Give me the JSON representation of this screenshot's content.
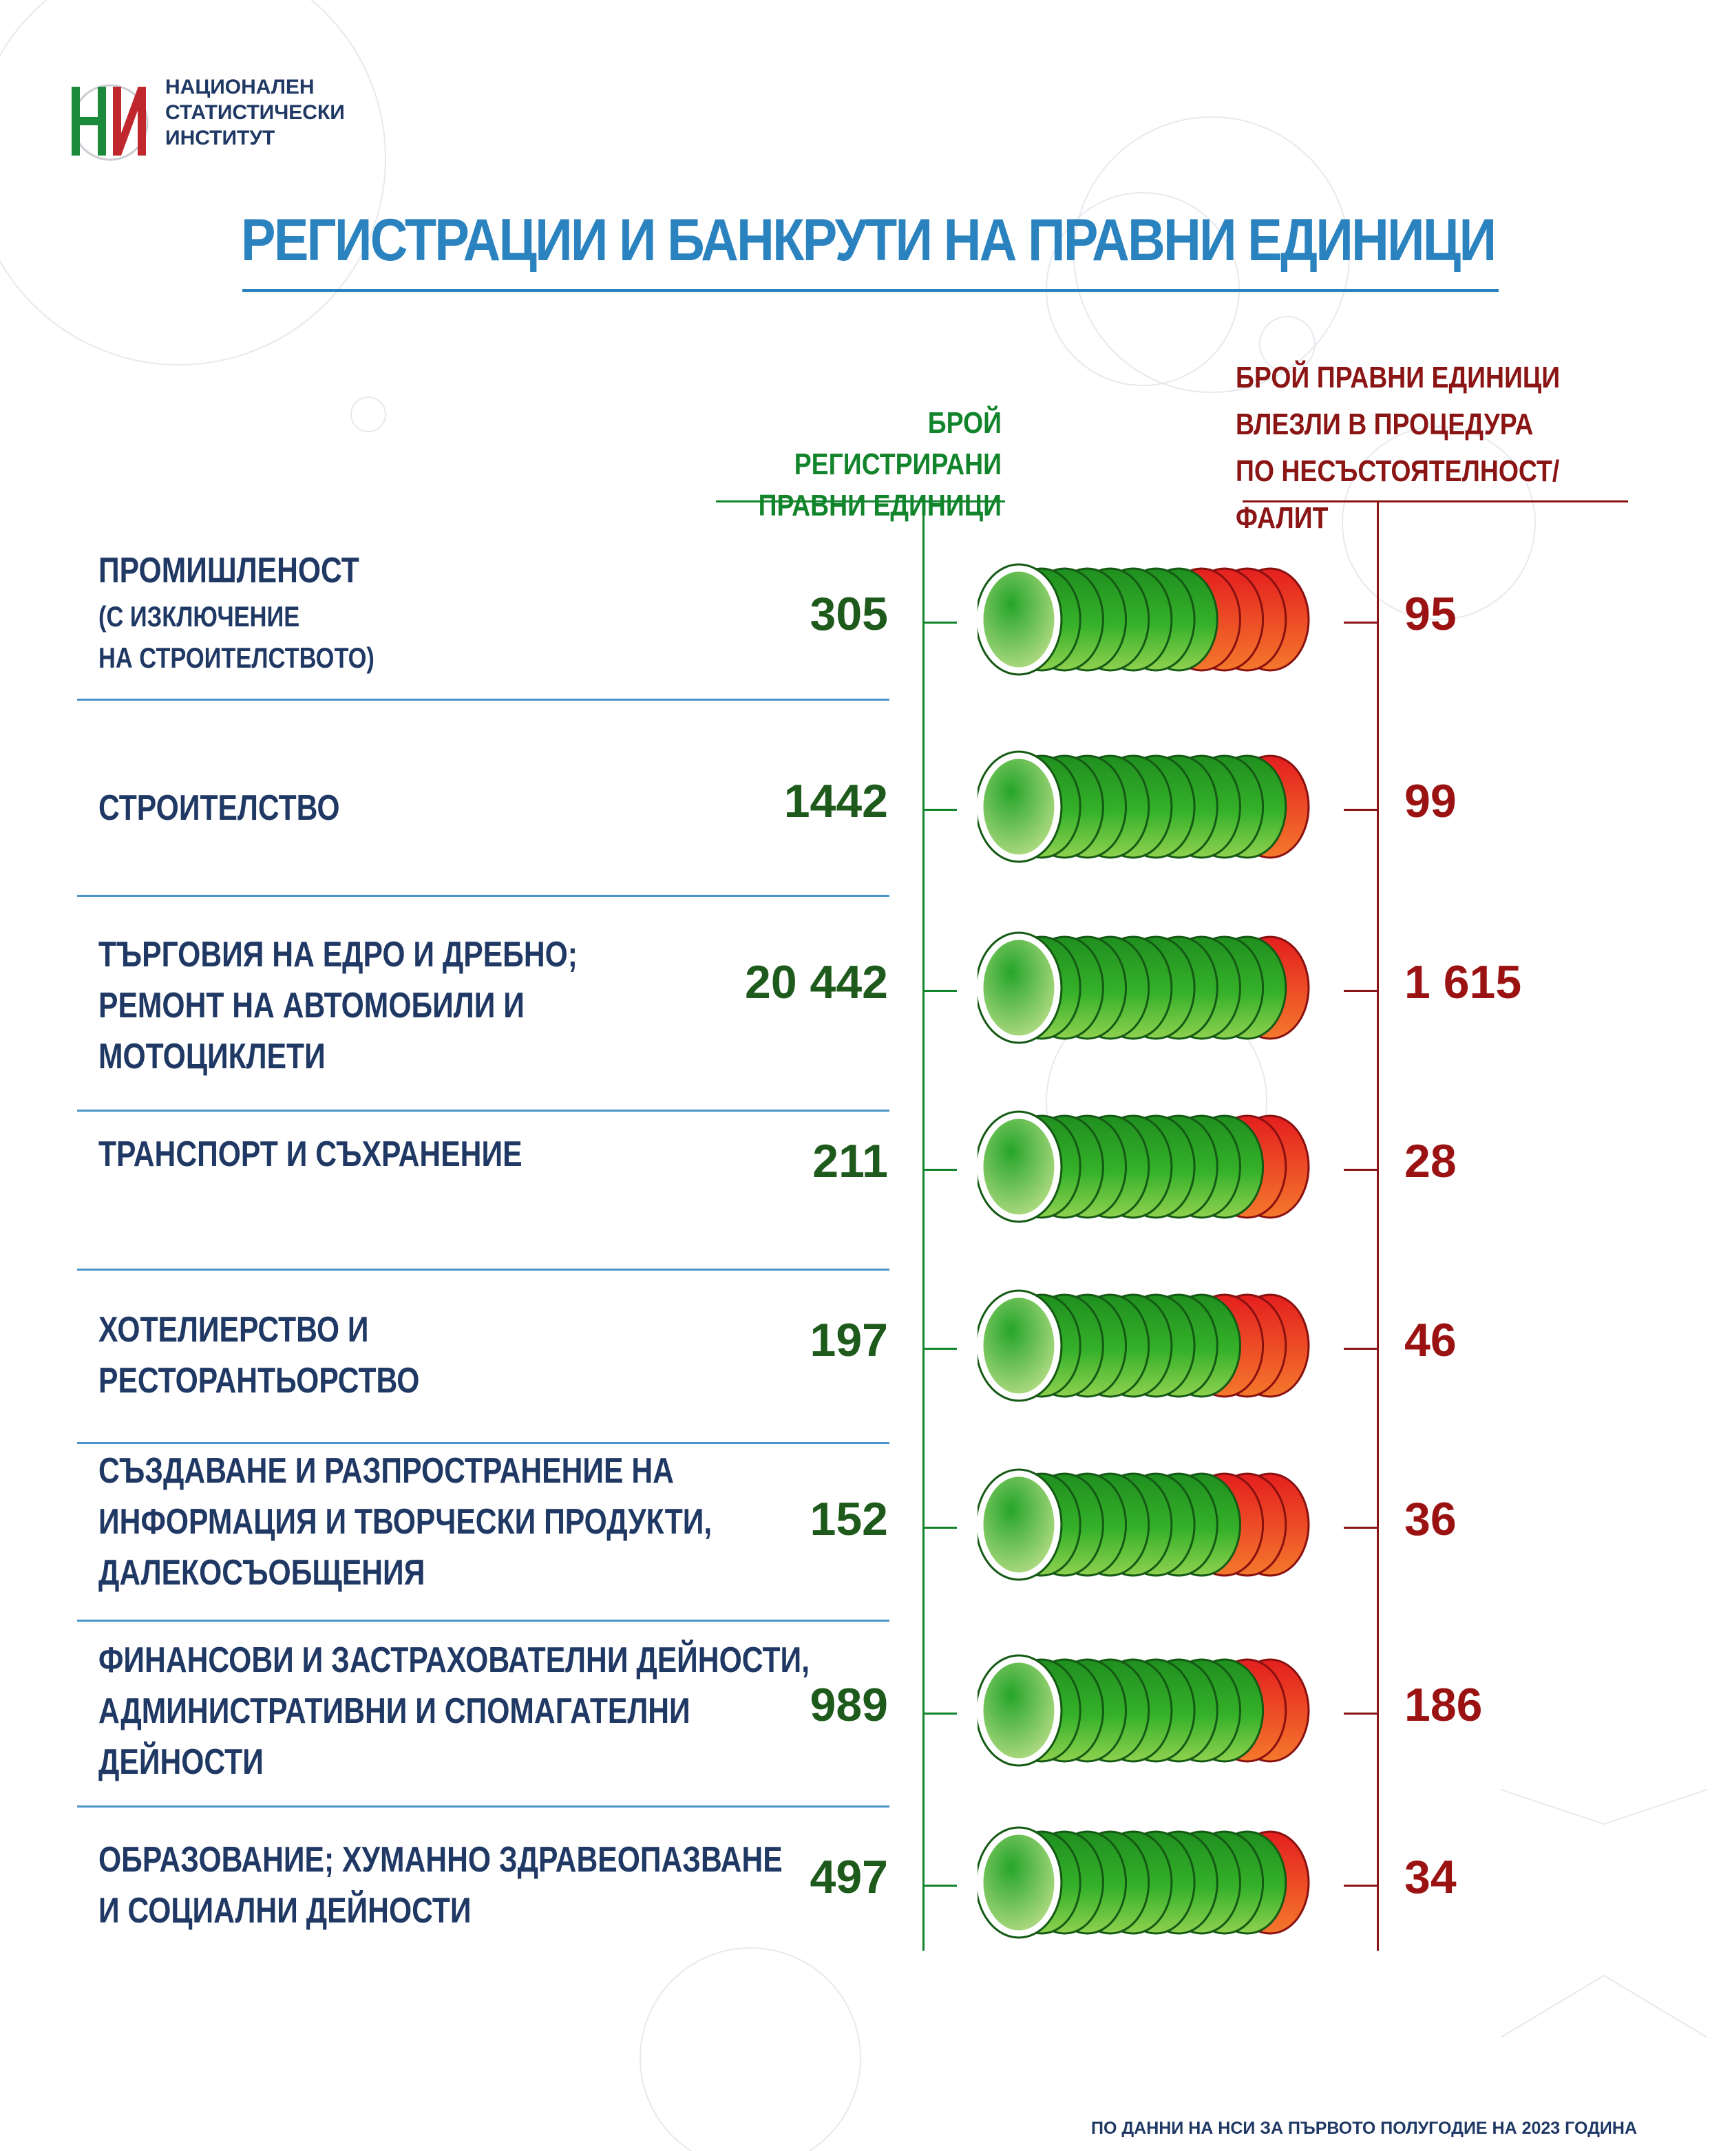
{
  "organization": {
    "line1": "НАЦИОНАЛЕН",
    "line2": "СТАТИСТИЧЕСКИ",
    "line3": "ИНСТИТУТ"
  },
  "title": "РЕГИСТРАЦИИ И БАНКРУТИ НА ПРАВНИ ЕДИНИЦИ",
  "headers": {
    "registered_line1": "БРОЙ РЕГИСТРИРАНИ",
    "registered_line2": "ПРАВНИ ЕДИНИЦИ",
    "bankrupt_line1": "БРОЙ ПРАВНИ ЕДИНИЦИ",
    "bankrupt_line2": "ВЛЕЗЛИ В ПРОЦЕДУРА",
    "bankrupt_line3": "ПО НЕСЪСТОЯТЕЛНОСТ/ФАЛИТ"
  },
  "colors": {
    "title_blue": "#2a82bf",
    "label_navy": "#1f3864",
    "registered_green": "#12852c",
    "bankrupt_red": "#8b1515"
  },
  "chart_data": {
    "type": "table",
    "series": [
      {
        "name": "БРОЙ РЕГИСТРИРАНИ ПРАВНИ ЕДИНИЦИ",
        "values": [
          305,
          1442,
          20442,
          211,
          197,
          152,
          989,
          497
        ]
      },
      {
        "name": "БРОЙ ПРАВНИ ЕДИНИЦИ ВЛЕЗЛИ В ПРОЦЕДУРА ПО НЕСЪСТОЯТЕЛНОСТ/ФАЛИТ",
        "values": [
          95,
          99,
          1615,
          28,
          46,
          36,
          186,
          34
        ]
      }
    ],
    "rows": [
      {
        "label": [
          "ПРОМИШЛЕНОСТ"
        ],
        "sublabel": [
          "(С ИЗКЛЮЧЕНИЕ",
          "НА СТРОИТЕЛСТВОТО)"
        ],
        "registered": "305",
        "bankrupt": "95",
        "red_share": 0.31
      },
      {
        "label": [
          "СТРОИТЕЛСТВО"
        ],
        "sublabel": [],
        "registered": "1442",
        "bankrupt": "99",
        "red_share": 0.07
      },
      {
        "label": [
          "ТЪРГОВИЯ НА ЕДРО И ДРЕБНО;",
          "РЕМОНТ НА АВТОМОБИЛИ И",
          "МОТОЦИКЛЕТИ"
        ],
        "sublabel": [],
        "registered": "20 442",
        "bankrupt": "1 615",
        "red_share": 0.08
      },
      {
        "label": [
          "ТРАНСПОРТ И СЪХРАНЕНИЕ"
        ],
        "sublabel": [],
        "registered": "211",
        "bankrupt": "28",
        "red_share": 0.13
      },
      {
        "label": [
          "ХОТЕЛИЕРСТВО И",
          "РЕСТОРАНТЬОРСТВО"
        ],
        "sublabel": [],
        "registered": "197",
        "bankrupt": "46",
        "red_share": 0.23
      },
      {
        "label": [
          "СЪЗДАВАНЕ И РАЗПРОСТРАНЕНИЕ НА",
          "ИНФОРМАЦИЯ И ТВОРЧЕСКИ ПРОДУКТИ,",
          "ДАЛЕКОСЪОБЩЕНИЯ"
        ],
        "sublabel": [],
        "registered": "152",
        "bankrupt": "36",
        "red_share": 0.24
      },
      {
        "label": [
          "ФИНАНСОВИ И ЗАСТРАХОВАТЕЛНИ ДЕЙНОСТИ,",
          "АДМИНИСТРАТИВНИ И СПОМАГАТЕЛНИ",
          "ДЕЙНОСТИ"
        ],
        "sublabel": [],
        "registered": "989",
        "bankrupt": "186",
        "red_share": 0.19
      },
      {
        "label": [
          "ОБРАЗОВАНИЕ; ХУМАННО ЗДРАВЕОПАЗВАНЕ",
          "И СОЦИАЛНИ ДЕЙНОСТИ"
        ],
        "sublabel": [],
        "registered": "497",
        "bankrupt": "34",
        "red_share": 0.07
      }
    ]
  },
  "footer": "ПО ДАННИ НА НСИ ЗА ПЪРВОТО ПОЛУГОДИЕ НА 2023 ГОДИНА"
}
